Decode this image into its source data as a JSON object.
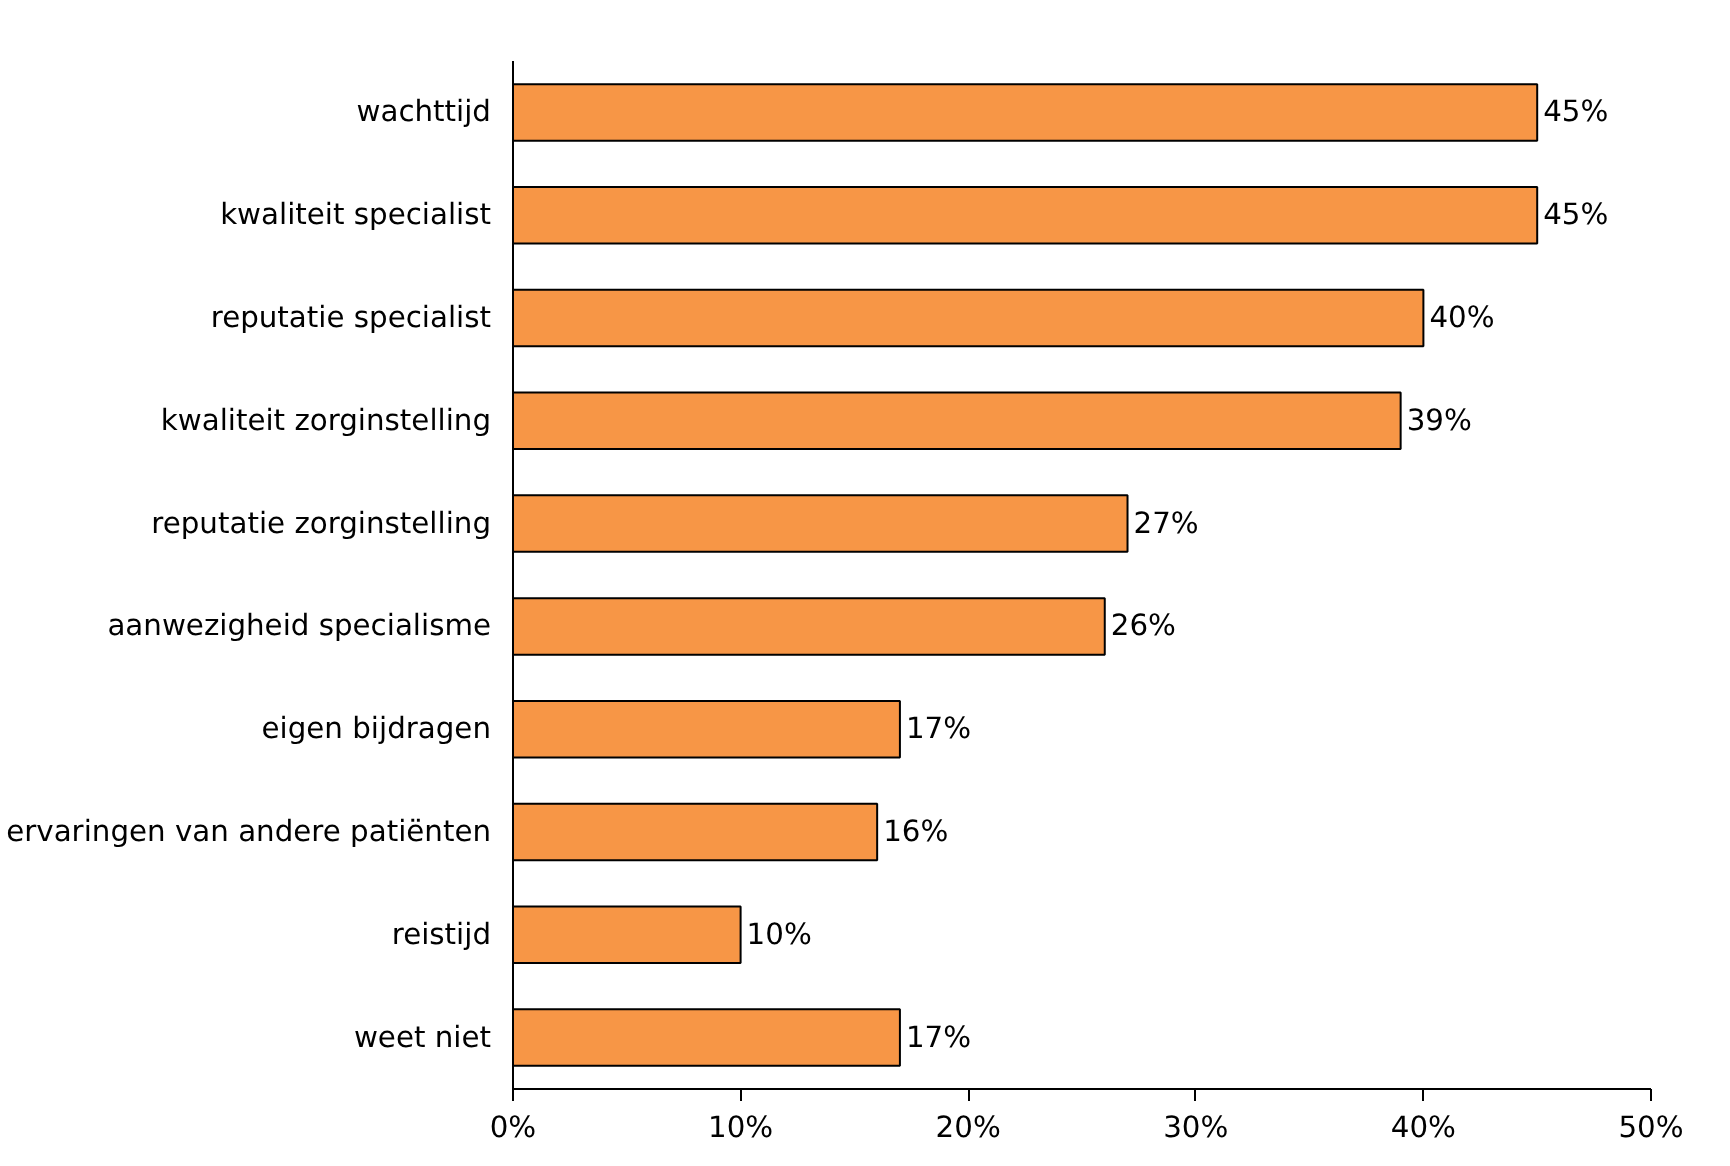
{
  "chart_data": {
    "type": "bar",
    "orientation": "horizontal",
    "categories": [
      "wachttijd",
      "kwaliteit specialist",
      "reputatie specialist",
      "kwaliteit zorginstelling",
      "reputatie zorginstelling",
      "aanwezigheid specialisme",
      "eigen bijdragen",
      "ervaringen van andere patiënten",
      "reistijd",
      "weet niet"
    ],
    "values": [
      45,
      45,
      40,
      39,
      27,
      26,
      17,
      16,
      10,
      17
    ],
    "value_labels": [
      "45%",
      "45%",
      "40%",
      "39%",
      "27%",
      "26%",
      "17%",
      "16%",
      "10%",
      "17%"
    ],
    "color": "#f79646",
    "xlim": [
      0,
      50
    ],
    "xticks": [
      {
        "value": 0,
        "label": "0%"
      },
      {
        "value": 10,
        "label": "10%"
      },
      {
        "value": 20,
        "label": "20%"
      },
      {
        "value": 30,
        "label": "30%"
      },
      {
        "value": 40,
        "label": "40%"
      },
      {
        "value": 50,
        "label": "50%"
      }
    ],
    "grid": false
  }
}
